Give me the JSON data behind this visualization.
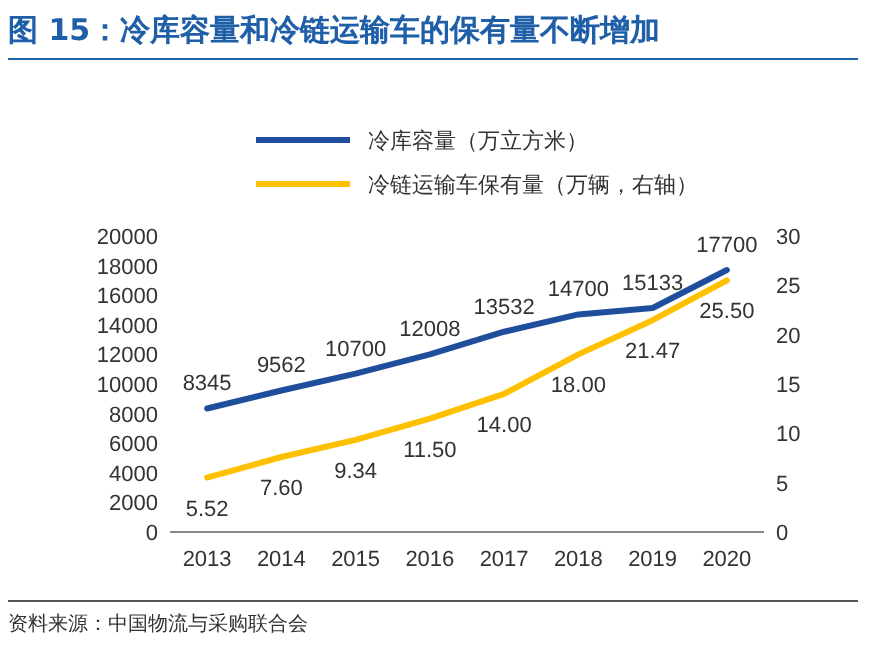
{
  "chart_data": {
    "type": "line",
    "title": "图 15：冷库容量和冷链运输车的保有量不断增加",
    "annotations": [
      "资料来源：中国物流与采购联合会"
    ],
    "categories": [
      "2013",
      "2014",
      "2015",
      "2016",
      "2017",
      "2018",
      "2019",
      "2020"
    ],
    "series": [
      {
        "name": "冷库容量（万立方米）",
        "color": "#1f4e9c",
        "values": [
          8345,
          9562,
          10700,
          12008,
          13532,
          14700,
          15133,
          17700
        ],
        "value_labels": [
          "8345",
          "9562",
          "10700",
          "12008",
          "13532",
          "14700",
          "15133",
          "17700"
        ]
      },
      {
        "name": "冷链运输车保有量（万辆，右轴）",
        "color": "#ffc000",
        "axis": "y2",
        "values": [
          5.52,
          7.6,
          9.34,
          11.5,
          14.0,
          18.0,
          21.47,
          25.5
        ],
        "value_labels": [
          "5.52",
          "7.60",
          "9.34",
          "11.50",
          "14.00",
          "18.00",
          "21.47",
          "25.50"
        ]
      }
    ],
    "ylim": [
      0,
      20000
    ],
    "yticks": [
      0,
      2000,
      4000,
      6000,
      8000,
      10000,
      12000,
      14000,
      16000,
      18000,
      20000
    ],
    "y2lim": [
      0,
      30
    ],
    "y2ticks": [
      0,
      5,
      10,
      15,
      20,
      25,
      30
    ],
    "legend": "top",
    "grid": false
  }
}
